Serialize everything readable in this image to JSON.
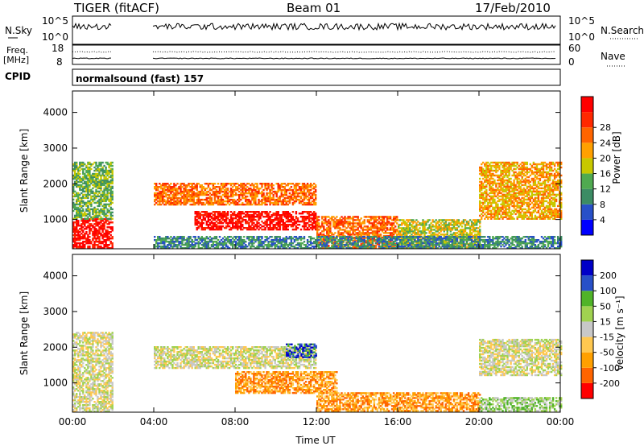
{
  "header": {
    "title": "TIGER (fitACF)",
    "beam": "Beam 01",
    "date": "17/Feb/2010"
  },
  "strip_nsky": {
    "left_label": "N.Sky",
    "left_ticks": [
      "10^5",
      "10^0"
    ],
    "right_label": "N.Search",
    "right_ticks": [
      "10^5",
      "10^0"
    ]
  },
  "strip_freq": {
    "left_label_1": "Freq.",
    "left_label_2": "[MHz]",
    "left_ticks": [
      "18",
      "8"
    ],
    "right_label": "Nave",
    "right_ticks": [
      "60",
      "0"
    ]
  },
  "cpid": {
    "label": "CPID",
    "value": "normalsound (fast) 157"
  },
  "colors": {
    "power_scale": [
      "#0000ff",
      "#2850c8",
      "#3c8c64",
      "#50aa50",
      "#c8c800",
      "#ffa000",
      "#ff6400",
      "#ff2800",
      "#ff0000"
    ],
    "velocity_scale": [
      "#ff0000",
      "#ff6400",
      "#ffa000",
      "#ffc850",
      "#c8c8c8",
      "#a0d250",
      "#50b428",
      "#2850c8",
      "#0000c8"
    ]
  },
  "chart_data": [
    {
      "type": "heatmap",
      "parameter": "power",
      "xlabel": "",
      "ylabel": "Slant Range [km]",
      "xlim": [
        0,
        24
      ],
      "ylim": [
        180,
        4600
      ],
      "yticks": [
        1000,
        2000,
        3000,
        4000
      ],
      "ytick_labels": [
        "1000",
        "2000",
        "3000",
        "4000"
      ],
      "colorbar_label": "Power [dB]",
      "colorbar_ticks": [
        "4",
        "8",
        "12",
        "16",
        "20",
        "24",
        "28"
      ],
      "data_gap": [
        2,
        4
      ],
      "regions": [
        {
          "t0": 0,
          "t1": 2,
          "r0": 180,
          "r1": 1000,
          "level": 8
        },
        {
          "t0": 0,
          "t1": 2,
          "r0": 1000,
          "r1": 2600,
          "level": 3
        },
        {
          "t0": 4,
          "t1": 12,
          "r0": 1400,
          "r1": 2000,
          "level": 6
        },
        {
          "t0": 6,
          "t1": 12,
          "r0": 700,
          "r1": 1200,
          "level": 8
        },
        {
          "t0": 12,
          "t1": 16,
          "r0": 200,
          "r1": 1100,
          "level": 6
        },
        {
          "t0": 16,
          "t1": 20,
          "r0": 200,
          "r1": 1000,
          "level": 4
        },
        {
          "t0": 20,
          "t1": 24,
          "r0": 1000,
          "r1": 2600,
          "level": 5
        },
        {
          "t0": 4,
          "t1": 24,
          "r0": 180,
          "r1": 500,
          "level": 2
        }
      ]
    },
    {
      "type": "heatmap",
      "parameter": "velocity",
      "xlabel": "Time UT",
      "ylabel": "Slant Range [km]",
      "xlim": [
        0,
        24
      ],
      "ylim": [
        180,
        4600
      ],
      "xticks": [
        0,
        4,
        8,
        12,
        16,
        20,
        24
      ],
      "xtick_labels": [
        "00:00",
        "04:00",
        "08:00",
        "12:00",
        "16:00",
        "20:00",
        "00:00"
      ],
      "yticks": [
        1000,
        2000,
        3000,
        4000
      ],
      "ytick_labels": [
        "1000",
        "2000",
        "3000",
        "4000"
      ],
      "colorbar_label": "Velocity [m s⁻¹]",
      "colorbar_ticks": [
        "-200",
        "-100",
        "-50",
        "-15",
        "15",
        "50",
        "100",
        "200"
      ],
      "data_gap": [
        2,
        4
      ],
      "regions": [
        {
          "t0": 0,
          "t1": 2,
          "r0": 180,
          "r1": 2400,
          "level": 4
        },
        {
          "t0": 4,
          "t1": 12,
          "r0": 1400,
          "r1": 2000,
          "level": 4
        },
        {
          "t0": 8,
          "t1": 13,
          "r0": 700,
          "r1": 1300,
          "level": 2
        },
        {
          "t0": 10.5,
          "t1": 12,
          "r0": 1700,
          "r1": 2100,
          "level": 7
        },
        {
          "t0": 12,
          "t1": 20,
          "r0": 200,
          "r1": 700,
          "level": 2
        },
        {
          "t0": 20,
          "t1": 24,
          "r0": 200,
          "r1": 600,
          "level": 5
        },
        {
          "t0": 20,
          "t1": 24,
          "r0": 1200,
          "r1": 2200,
          "level": 4
        }
      ]
    }
  ]
}
